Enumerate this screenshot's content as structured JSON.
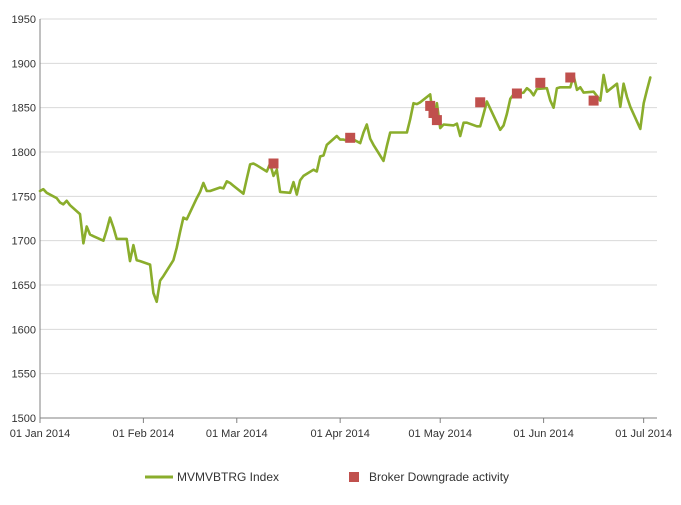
{
  "chart_data": {
    "type": "line",
    "title": "",
    "xlabel": "",
    "ylabel": "",
    "ylim": [
      1500,
      1950
    ],
    "yticks": [
      1500,
      1550,
      1600,
      1650,
      1700,
      1750,
      1800,
      1850,
      1900,
      1950
    ],
    "xlim": [
      "2014-01-01",
      "2014-07-05"
    ],
    "xtick_labels": [
      "01 Jan 2014",
      "01 Feb 2014",
      "01 Mar 2014",
      "01 Apr 2014",
      "01 May 2014",
      "01 Jun 2014",
      "01 Jul 2014"
    ],
    "xtick_dates": [
      "2014-01-01",
      "2014-02-01",
      "2014-03-01",
      "2014-04-01",
      "2014-05-01",
      "2014-06-01",
      "2014-07-01"
    ],
    "grid": "horizontal",
    "legend_position": "bottom",
    "colors": {
      "line": "#8aad2c",
      "markers": "#c0504d",
      "grid": "#d9d9d9",
      "axis": "#808080"
    },
    "series": [
      {
        "name": "MVMVBTRG Index",
        "kind": "line",
        "x": [
          "2014-01-01",
          "2014-01-02",
          "2014-01-03",
          "2014-01-06",
          "2014-01-07",
          "2014-01-08",
          "2014-01-09",
          "2014-01-10",
          "2014-01-13",
          "2014-01-14",
          "2014-01-15",
          "2014-01-16",
          "2014-01-17",
          "2014-01-20",
          "2014-01-21",
          "2014-01-22",
          "2014-01-23",
          "2014-01-24",
          "2014-01-27",
          "2014-01-28",
          "2014-01-29",
          "2014-01-30",
          "2014-01-31",
          "2014-02-03",
          "2014-02-04",
          "2014-02-05",
          "2014-02-06",
          "2014-02-07",
          "2014-02-10",
          "2014-02-11",
          "2014-02-12",
          "2014-02-13",
          "2014-02-14",
          "2014-02-17",
          "2014-02-18",
          "2014-02-19",
          "2014-02-20",
          "2014-02-21",
          "2014-02-24",
          "2014-02-25",
          "2014-02-26",
          "2014-02-27",
          "2014-02-28",
          "2014-03-03",
          "2014-03-04",
          "2014-03-05",
          "2014-03-06",
          "2014-03-07",
          "2014-03-10",
          "2014-03-11",
          "2014-03-12",
          "2014-03-13",
          "2014-03-14",
          "2014-03-17",
          "2014-03-18",
          "2014-03-19",
          "2014-03-20",
          "2014-03-21",
          "2014-03-24",
          "2014-03-25",
          "2014-03-26",
          "2014-03-27",
          "2014-03-28",
          "2014-03-31",
          "2014-04-01",
          "2014-04-02",
          "2014-04-03",
          "2014-04-04",
          "2014-04-07",
          "2014-04-08",
          "2014-04-09",
          "2014-04-10",
          "2014-04-11",
          "2014-04-14",
          "2014-04-15",
          "2014-04-16",
          "2014-04-17",
          "2014-04-21",
          "2014-04-22",
          "2014-04-23",
          "2014-04-24",
          "2014-04-25",
          "2014-04-28",
          "2014-04-29",
          "2014-04-30",
          "2014-05-01",
          "2014-05-02",
          "2014-05-05",
          "2014-05-06",
          "2014-05-07",
          "2014-05-08",
          "2014-05-09",
          "2014-05-12",
          "2014-05-13",
          "2014-05-14",
          "2014-05-15",
          "2014-05-16",
          "2014-05-19",
          "2014-05-20",
          "2014-05-21",
          "2014-05-22",
          "2014-05-23",
          "2014-05-26",
          "2014-05-27",
          "2014-05-28",
          "2014-05-29",
          "2014-05-30",
          "2014-06-02",
          "2014-06-03",
          "2014-06-04",
          "2014-06-05",
          "2014-06-06",
          "2014-06-09",
          "2014-06-10",
          "2014-06-11",
          "2014-06-12",
          "2014-06-13",
          "2014-06-16",
          "2014-06-17",
          "2014-06-18",
          "2014-06-19",
          "2014-06-20",
          "2014-06-23",
          "2014-06-24",
          "2014-06-25",
          "2014-06-26",
          "2014-06-27",
          "2014-06-30",
          "2014-07-01",
          "2014-07-02",
          "2014-07-03"
        ],
        "y": [
          1756,
          1758,
          1754,
          1748,
          1743,
          1741,
          1745,
          1740,
          1730,
          1697,
          1716,
          1707,
          1705,
          1700,
          1712,
          1726,
          1715,
          1702,
          1702,
          1677,
          1695,
          1678,
          1677,
          1673,
          1641,
          1631,
          1655,
          1660,
          1678,
          1692,
          1710,
          1726,
          1724,
          1748,
          1755,
          1765,
          1756,
          1756,
          1760,
          1759,
          1767,
          1765,
          1762,
          1753,
          1770,
          1786,
          1787,
          1785,
          1778,
          1787,
          1773,
          1780,
          1755,
          1754,
          1766,
          1752,
          1768,
          1773,
          1780,
          1778,
          1795,
          1796,
          1808,
          1818,
          1814,
          1814,
          1813,
          1816,
          1810,
          1822,
          1831,
          1815,
          1808,
          1790,
          1807,
          1822,
          1822,
          1822,
          1837,
          1855,
          1854,
          1856,
          1865,
          1835,
          1855,
          1827,
          1831,
          1830,
          1832,
          1818,
          1833,
          1833,
          1829,
          1829,
          1843,
          1857,
          1849,
          1825,
          1830,
          1843,
          1860,
          1865,
          1867,
          1872,
          1869,
          1864,
          1871,
          1872,
          1858,
          1850,
          1872,
          1873,
          1873,
          1886,
          1870,
          1873,
          1867,
          1868,
          1863,
          1858,
          1887,
          1868,
          1877,
          1851,
          1877,
          1862,
          1851,
          1826,
          1855,
          1870,
          1884
        ]
      },
      {
        "name": "Broker Downgrade activity",
        "kind": "markers",
        "x": [
          "2014-03-12",
          "2014-04-04",
          "2014-04-28",
          "2014-04-29",
          "2014-04-30",
          "2014-05-13",
          "2014-05-24",
          "2014-05-31",
          "2014-06-09",
          "2014-06-16"
        ],
        "y": [
          1787,
          1816,
          1852,
          1844,
          1836,
          1856,
          1866,
          1878,
          1884,
          1858
        ]
      }
    ]
  }
}
